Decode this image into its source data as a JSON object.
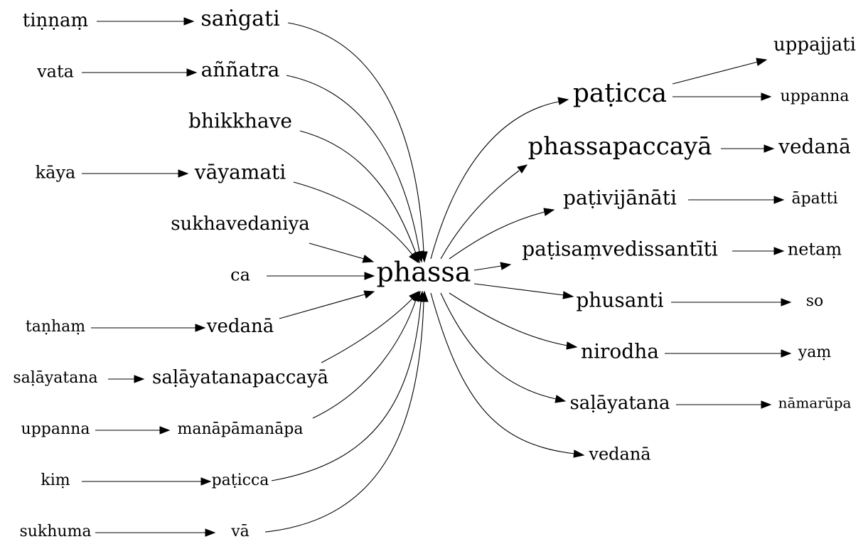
{
  "graph": {
    "center": "phassa",
    "sources": [
      {
        "outer": "tiṇṇaṃ",
        "inner": "saṅgati"
      },
      {
        "outer": "vata",
        "inner": "aññatra"
      },
      {
        "outer": "",
        "inner": "bhikkhave"
      },
      {
        "outer": "kāya",
        "inner": "vāyamati"
      },
      {
        "outer": "",
        "inner": "sukhavedaniya"
      },
      {
        "outer": "",
        "inner": "ca"
      },
      {
        "outer": "taṇhaṃ",
        "inner": "vedanā"
      },
      {
        "outer": "saḷāyatana",
        "inner": "saḷāyatanapaccayā"
      },
      {
        "outer": "uppanna",
        "inner": "manāpāmanāpa"
      },
      {
        "outer": "kiṃ",
        "inner": "paṭicca"
      },
      {
        "outer": "sukhuma",
        "inner": "vā"
      }
    ],
    "targets": [
      {
        "inner": "paṭicca",
        "outer": [
          "uppajjati",
          "uppanna"
        ]
      },
      {
        "inner": "phassapaccayā",
        "outer": [
          "vedanā"
        ]
      },
      {
        "inner": "paṭivijānāti",
        "outer": [
          "āpatti"
        ]
      },
      {
        "inner": "paṭisaṃvedissantīti",
        "outer": [
          "netaṃ"
        ]
      },
      {
        "inner": "phusanti",
        "outer": [
          "so"
        ]
      },
      {
        "inner": "nirodha",
        "outer": [
          "yaṃ"
        ]
      },
      {
        "inner": "saḷāyatana",
        "outer": [
          "nāmarūpa"
        ]
      },
      {
        "inner": "vedanā",
        "outer": []
      }
    ]
  }
}
